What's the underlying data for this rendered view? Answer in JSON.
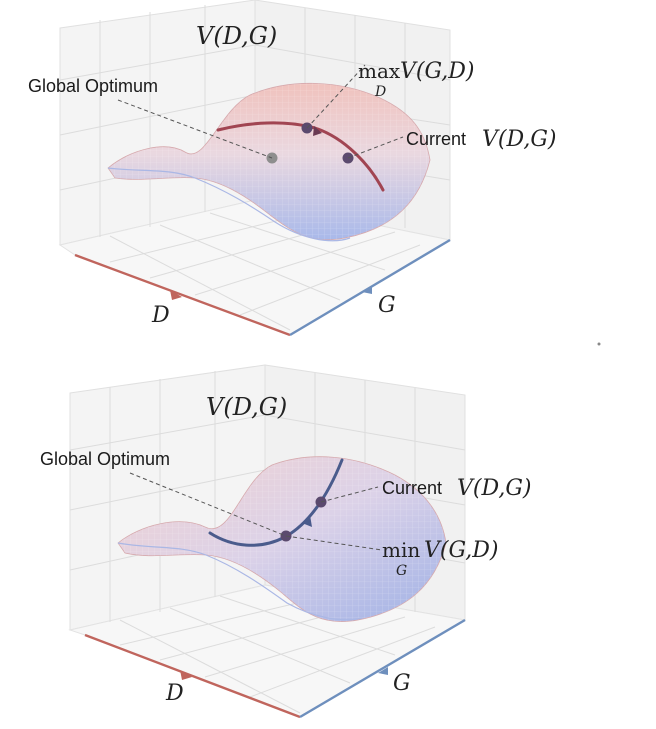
{
  "panels": [
    {
      "id": "top",
      "title": "V(D,G)",
      "global_optimum_label": "Global Optimum",
      "annotation_label": "Current",
      "annotation_math": "V(D,G)",
      "operator_label_word": "max",
      "operator_sub": "D",
      "operator_math": "V(G,D)",
      "axis_d_label": "D",
      "axis_g_label": "G",
      "curve_color": "#a14552"
    },
    {
      "id": "bottom",
      "title": "V(D,G)",
      "global_optimum_label": "Global Optimum",
      "annotation_label": "Current",
      "annotation_math": "V(D,G)",
      "operator_label_word": "min",
      "operator_sub": "G",
      "operator_math": "V(G,D)",
      "axis_d_label": "D",
      "axis_g_label": "G",
      "curve_color": "#4a5b8c"
    }
  ],
  "colors": {
    "surface_warm": "#e8a8a6",
    "surface_cool": "#a9b8e6",
    "axis_d": "#c0655d",
    "axis_g": "#6e8fbd",
    "grid": "#d9d9d9",
    "wall": "#f3f3f3",
    "point": "#5b4a6e",
    "optimum_point": "#8e8e8e"
  }
}
